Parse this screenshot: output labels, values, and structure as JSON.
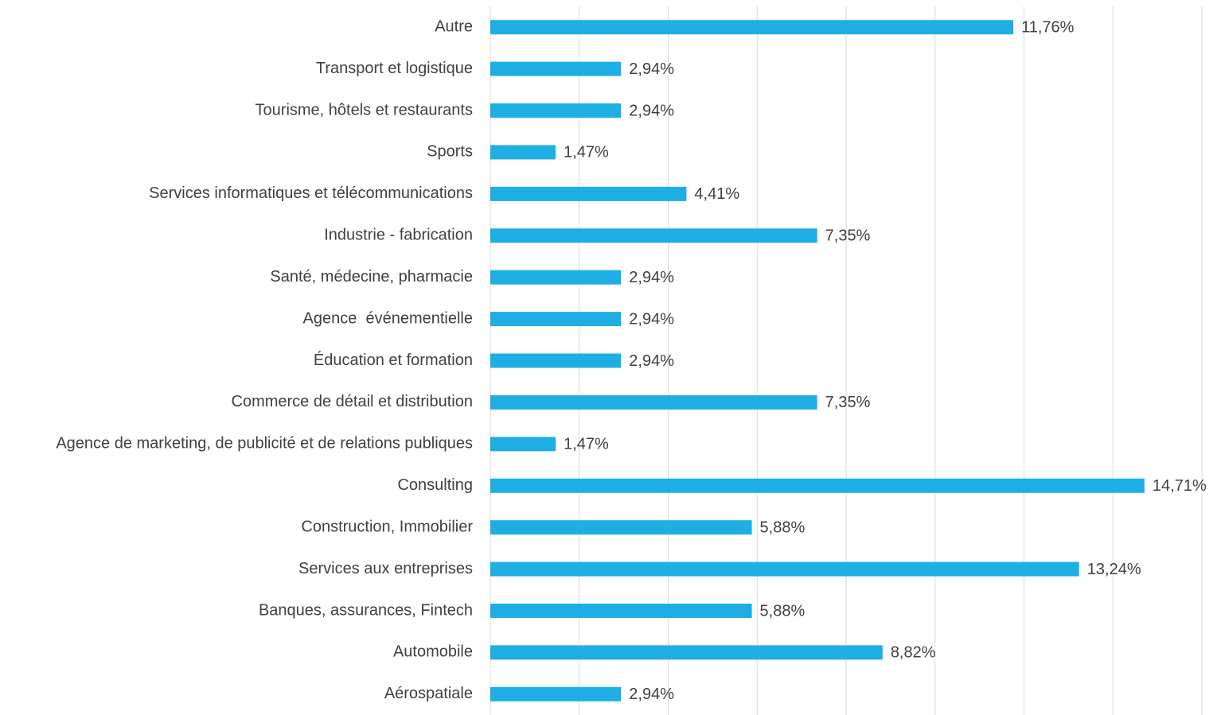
{
  "chart_data": {
    "type": "bar",
    "orientation": "horizontal",
    "categories": [
      "Autre",
      "Transport et logistique",
      "Tourisme, hôtels et restaurants",
      "Sports",
      "Services informatiques et télécommunications",
      "Industrie - fabrication",
      "Santé, médecine, pharmacie",
      "Agence  événementielle",
      "Éducation et formation",
      "Commerce de détail et distribution",
      "Agence de marketing, de publicité et de relations publiques",
      "Consulting",
      "Construction, Immobilier",
      "Services aux entreprises",
      "Banques, assurances, Fintech",
      "Automobile",
      "Aérospatiale"
    ],
    "values": [
      11.76,
      2.94,
      2.94,
      1.47,
      4.41,
      7.35,
      2.94,
      2.94,
      2.94,
      7.35,
      1.47,
      14.71,
      5.88,
      13.24,
      5.88,
      8.82,
      2.94
    ],
    "value_labels": [
      "11,76%",
      "2,94%",
      "2,94%",
      "1,47%",
      "4,41%",
      "7,35%",
      "2,94%",
      "2,94%",
      "2,94%",
      "7,35%",
      "1,47%",
      "14,71%",
      "5,88%",
      "13,24%",
      "5,88%",
      "8,82%",
      "2,94%"
    ],
    "color": "#1eaee4",
    "xlim": [
      0,
      16
    ],
    "xticks": [
      0,
      2,
      4,
      6,
      8,
      10,
      12,
      14,
      16
    ],
    "grid": true
  }
}
